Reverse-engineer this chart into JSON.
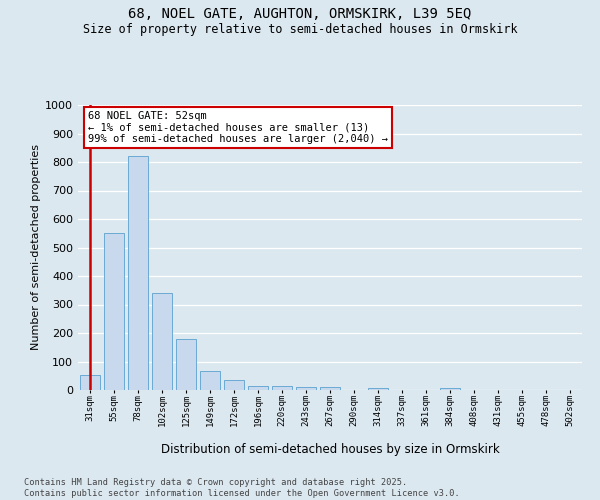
{
  "title_line1": "68, NOEL GATE, AUGHTON, ORMSKIRK, L39 5EQ",
  "title_line2": "Size of property relative to semi-detached houses in Ormskirk",
  "xlabel": "Distribution of semi-detached houses by size in Ormskirk",
  "ylabel": "Number of semi-detached properties",
  "categories": [
    "31sqm",
    "55sqm",
    "78sqm",
    "102sqm",
    "125sqm",
    "149sqm",
    "172sqm",
    "196sqm",
    "220sqm",
    "243sqm",
    "267sqm",
    "290sqm",
    "314sqm",
    "337sqm",
    "361sqm",
    "384sqm",
    "408sqm",
    "431sqm",
    "455sqm",
    "478sqm",
    "502sqm"
  ],
  "values": [
    52,
    550,
    820,
    340,
    178,
    68,
    35,
    15,
    13,
    11,
    10,
    0,
    8,
    0,
    0,
    8,
    0,
    0,
    0,
    0,
    0
  ],
  "bar_color": "#c8d9ed",
  "bar_edge_color": "#6aaad4",
  "highlight_color": "#cc0000",
  "annotation_title": "68 NOEL GATE: 52sqm",
  "annotation_line2": "← 1% of semi-detached houses are smaller (13)",
  "annotation_line3": "99% of semi-detached houses are larger (2,040) →",
  "ylim": [
    0,
    1000
  ],
  "yticks": [
    0,
    100,
    200,
    300,
    400,
    500,
    600,
    700,
    800,
    900,
    1000
  ],
  "footer_line1": "Contains HM Land Registry data © Crown copyright and database right 2025.",
  "footer_line2": "Contains public sector information licensed under the Open Government Licence v3.0.",
  "bg_color": "#dce8f0",
  "grid_color": "#ffffff"
}
